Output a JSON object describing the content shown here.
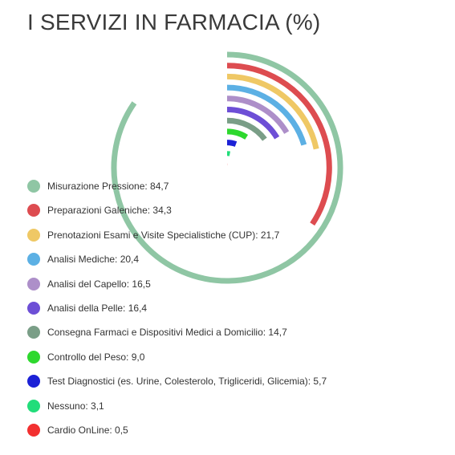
{
  "chart_data": {
    "type": "radial-bar",
    "title": "I SERVIZI IN FARMACIA (%)",
    "max": 100,
    "series": [
      {
        "label": "Misurazione Pressione: 84,7",
        "value": 84.7,
        "color": "#8fc6a4"
      },
      {
        "label": "Preparazioni Galeniche: 34,3",
        "value": 34.3,
        "color": "#dd4c50"
      },
      {
        "label": "Prenotazioni Esami e Visite Specialistiche (CUP): 21,7",
        "value": 21.7,
        "color": "#efc865"
      },
      {
        "label": "Analisi Mediche: 20,4",
        "value": 20.4,
        "color": "#5cb0e4"
      },
      {
        "label": "Analisi del Capello: 16,5",
        "value": 16.5,
        "color": "#ad8fc9"
      },
      {
        "label": "Analisi della Pelle: 16,4",
        "value": 16.4,
        "color": "#6d4fd6"
      },
      {
        "label": "Consegna Farmaci e Dispositivi Medici a Domicilio: 14,7",
        "value": 14.7,
        "color": "#7a9e87"
      },
      {
        "label": "Controllo del Peso: 9,0",
        "value": 9.0,
        "color": "#2ed82e"
      },
      {
        "label": "Test Diagnostici (es. Urine, Colesterolo, Trigliceridi, Glicemia): 5,7",
        "value": 5.7,
        "color": "#1c21d6"
      },
      {
        "label": "Nessuno: 3,1",
        "value": 3.1,
        "color": "#22dd7a"
      },
      {
        "label": "Cardio OnLine: 0,5",
        "value": 0.5,
        "color": "#f23030"
      }
    ]
  }
}
